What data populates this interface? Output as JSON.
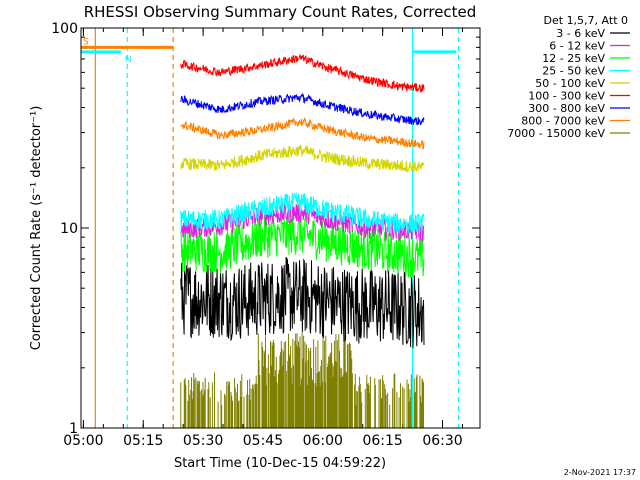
{
  "chart_data": {
    "type": "line",
    "title": "RHESSI Observing Summary Count Rates, Corrected",
    "xlabel": "Start Time (10-Dec-15 04:59:22)",
    "ylabel": "Corrected Count Rate (s⁻¹ detector⁻¹)",
    "y_scale": "log",
    "ylim": [
      1,
      100
    ],
    "xlim_minutes": [
      0,
      100
    ],
    "x_ticks": [
      {
        "label": "05:00",
        "m": 0.6
      },
      {
        "label": "05:15",
        "m": 15.6
      },
      {
        "label": "05:30",
        "m": 30.6
      },
      {
        "label": "05:45",
        "m": 45.6
      },
      {
        "label": "06:00",
        "m": 60.6
      },
      {
        "label": "06:15",
        "m": 75.6
      },
      {
        "label": "06:30",
        "m": 90.6
      }
    ],
    "y_ticks": [
      {
        "label": "100",
        "v": 100
      },
      {
        "label": "10",
        "v": 10
      },
      {
        "label": "1",
        "v": 1
      }
    ],
    "legend_header": "Det 1,5,7, Att 0",
    "series": [
      {
        "name": "3 - 6 keV",
        "color": "#000000",
        "noise": 0.45,
        "points": [
          [
            25,
            4.5
          ],
          [
            40,
            4.3
          ],
          [
            50,
            4.6
          ],
          [
            58,
            4.5
          ],
          [
            65,
            4.2
          ],
          [
            80,
            4.0
          ],
          [
            86,
            3.8
          ]
        ]
      },
      {
        "name": "6 - 12 keV",
        "color": "#e020e0",
        "noise": 0.12,
        "points": [
          [
            25,
            9.8
          ],
          [
            35,
            10.3
          ],
          [
            45,
            11.5
          ],
          [
            55,
            12.0
          ],
          [
            62,
            11.0
          ],
          [
            72,
            10.0
          ],
          [
            80,
            9.8
          ],
          [
            86,
            9.6
          ]
        ]
      },
      {
        "name": "12 - 25 keV",
        "color": "#00ff00",
        "noise": 0.25,
        "points": [
          [
            25,
            7.8
          ],
          [
            35,
            7.6
          ],
          [
            45,
            9.0
          ],
          [
            55,
            9.4
          ],
          [
            62,
            8.6
          ],
          [
            72,
            7.8
          ],
          [
            80,
            7.4
          ],
          [
            86,
            7.0
          ]
        ]
      },
      {
        "name": "25 - 50 keV",
        "color": "#00ffff",
        "noise": 0.12,
        "points": [
          [
            25,
            11.0
          ],
          [
            35,
            11.0
          ],
          [
            45,
            12.5
          ],
          [
            55,
            13.5
          ],
          [
            62,
            12.2
          ],
          [
            72,
            11.0
          ],
          [
            80,
            10.5
          ],
          [
            86,
            10.5
          ]
        ]
      },
      {
        "name": "50 - 100 keV",
        "color": "#d4d400",
        "noise": 0.07,
        "points": [
          [
            25,
            21.0
          ],
          [
            35,
            20.5
          ],
          [
            45,
            23.0
          ],
          [
            55,
            24.5
          ],
          [
            62,
            22.5
          ],
          [
            72,
            21.0
          ],
          [
            80,
            20.5
          ],
          [
            86,
            20.0
          ]
        ]
      },
      {
        "name": "100 - 300 keV",
        "color": "#ff0000",
        "noise": 0.05,
        "points": [
          [
            25,
            66
          ],
          [
            35,
            60
          ],
          [
            45,
            65
          ],
          [
            55,
            71
          ],
          [
            62,
            63
          ],
          [
            72,
            55
          ],
          [
            80,
            51
          ],
          [
            86,
            50
          ]
        ]
      },
      {
        "name": "300 - 800 keV",
        "color": "#0000ff",
        "noise": 0.05,
        "points": [
          [
            25,
            44
          ],
          [
            35,
            39
          ],
          [
            45,
            43
          ],
          [
            55,
            45
          ],
          [
            62,
            41
          ],
          [
            72,
            37
          ],
          [
            80,
            35
          ],
          [
            86,
            34
          ]
        ]
      },
      {
        "name": "800 - 7000 keV",
        "color": "#ff8000",
        "noise": 0.05,
        "points": [
          [
            25,
            33
          ],
          [
            35,
            29
          ],
          [
            45,
            31
          ],
          [
            55,
            34
          ],
          [
            62,
            31
          ],
          [
            72,
            28
          ],
          [
            80,
            27
          ],
          [
            86,
            26
          ]
        ]
      },
      {
        "name": "7000 - 15000 keV",
        "color": "#808000",
        "noise": 0.2,
        "points": [
          [
            25,
            1.8
          ],
          [
            86,
            1.8
          ]
        ]
      }
    ],
    "bars": [
      {
        "label": "S",
        "color": "#ff8000",
        "start_m": 0,
        "end_m": 23,
        "value": 80
      },
      {
        "label": "N",
        "color": "#00ffff",
        "start_m": 0,
        "end_m": 10,
        "value": 76
      },
      {
        "label": "",
        "color": "#00ffff",
        "start_m": 83,
        "end_m": 94,
        "value": 76
      }
    ],
    "vlines": [
      {
        "m": 3.6,
        "color": "#ff8000",
        "dash": false
      },
      {
        "m": 11.6,
        "color": "#00ffff",
        "dash": true
      },
      {
        "m": 23.1,
        "color": "#ff8000",
        "dash": true
      },
      {
        "m": 83.1,
        "color": "#00ffff",
        "dash": false
      },
      {
        "m": 94.6,
        "color": "#00ffff",
        "dash": true
      }
    ]
  },
  "footer": {
    "timestamp": "2-Nov-2021 17:37"
  }
}
